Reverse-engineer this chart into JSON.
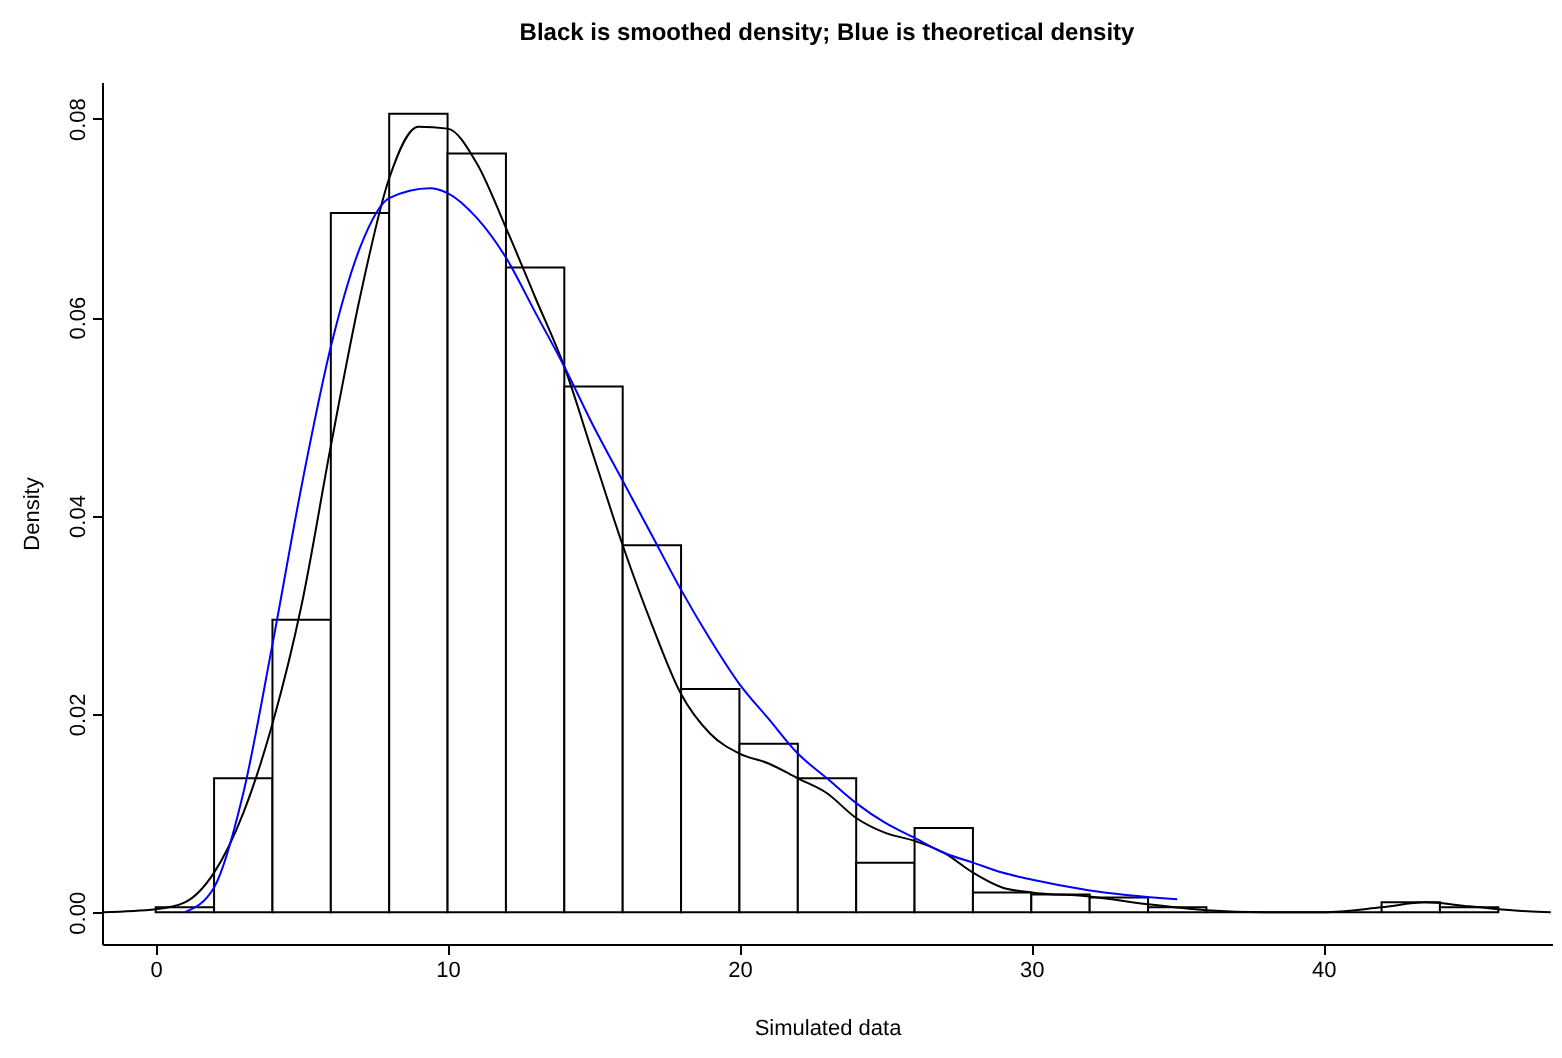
{
  "chart_data": {
    "type": "histogram",
    "title": "Black is smoothed density; Blue is theoretical density",
    "xlabel": "Simulated data",
    "ylabel": "Density",
    "xlim": [
      -1.84,
      47.84
    ],
    "xticks": [
      0,
      10,
      20,
      30,
      40
    ],
    "ylim": [
      -0.0032,
      0.0837
    ],
    "yticks": [
      {
        "value": 0,
        "label": "0.00"
      },
      {
        "value": 0.02,
        "label": "0.02"
      },
      {
        "value": 0.04,
        "label": "0.04"
      },
      {
        "value": 0.06,
        "label": "0.06"
      },
      {
        "value": 0.08,
        "label": "0.08"
      }
    ],
    "grid": false,
    "series": [
      {
        "color": "#000000",
        "bins": [
          0,
          2,
          4,
          6,
          8,
          10,
          12,
          14,
          16,
          18,
          20,
          22,
          24,
          26,
          28,
          30,
          32,
          34,
          36,
          38,
          40,
          42,
          44,
          46
        ],
        "values": [
          0.0005,
          0.0135,
          0.0295,
          0.0705,
          0.0805,
          0.0765,
          0.065,
          0.053,
          0.037,
          0.0225,
          0.017,
          0.0135,
          0.005,
          0.0085,
          0.002,
          0.0018,
          0.0015,
          0.0005,
          0,
          0,
          0,
          0.001,
          0.0005
        ]
      },
      {
        "type": "line",
        "color": "#000000",
        "x": [
          -1.8,
          0,
          1,
          2,
          3,
          4,
          5,
          6,
          7,
          8,
          9,
          10,
          11,
          12,
          13,
          14,
          15,
          16,
          17,
          18,
          19,
          20,
          21,
          22,
          23,
          24,
          25,
          26,
          27,
          28,
          29,
          30,
          32,
          34,
          36,
          38,
          40,
          42,
          43.5,
          45,
          47,
          47.8
        ],
        "values": [
          0,
          0.0003,
          0.001,
          0.004,
          0.01,
          0.019,
          0.031,
          0.047,
          0.062,
          0.074,
          0.0792,
          0.079,
          0.0755,
          0.069,
          0.062,
          0.055,
          0.046,
          0.037,
          0.029,
          0.022,
          0.018,
          0.016,
          0.015,
          0.0135,
          0.012,
          0.0095,
          0.008,
          0.0072,
          0.006,
          0.004,
          0.0025,
          0.002,
          0.0016,
          0.0008,
          0.0002,
          0,
          0,
          0.0005,
          0.001,
          0.0006,
          0.0001,
          0
        ]
      },
      {
        "type": "line",
        "color": "#0000ff",
        "x": [
          1,
          2,
          3,
          4,
          5,
          6,
          7,
          8,
          9.4,
          10,
          11,
          12,
          13,
          14,
          15,
          16,
          17,
          18,
          19,
          20,
          21,
          22,
          23,
          24,
          25,
          26,
          27,
          28,
          29,
          30,
          32,
          35
        ],
        "values": [
          0,
          0.0025,
          0.012,
          0.027,
          0.043,
          0.057,
          0.067,
          0.072,
          0.073,
          0.0725,
          0.07,
          0.066,
          0.0605,
          0.055,
          0.049,
          0.0435,
          0.038,
          0.0325,
          0.0275,
          0.023,
          0.0195,
          0.016,
          0.0135,
          0.011,
          0.009,
          0.0075,
          0.006,
          0.005,
          0.004,
          0.0033,
          0.0022,
          0.0013
        ]
      }
    ]
  }
}
